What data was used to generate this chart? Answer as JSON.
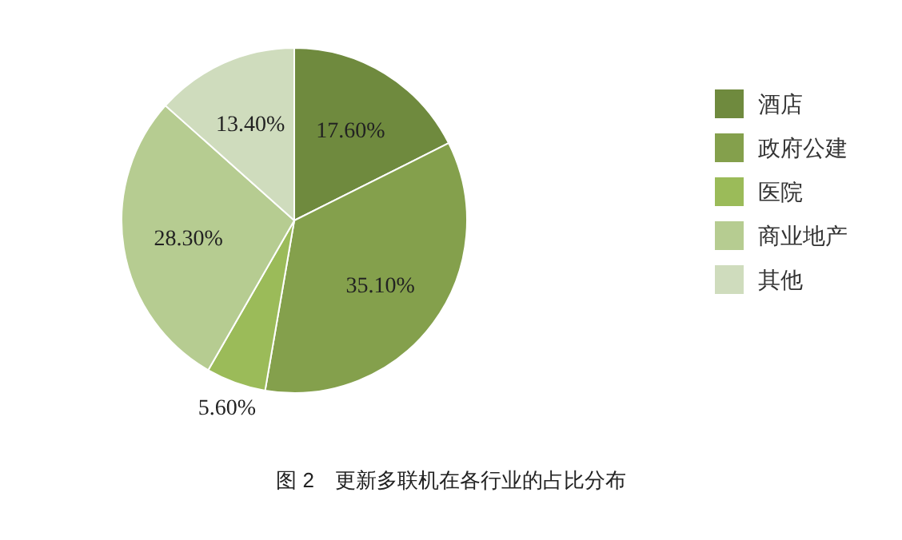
{
  "chart_data": {
    "type": "pie",
    "title": "图 2　更新多联机在各行业的占比分布",
    "categories": [
      "酒店",
      "政府公建",
      "医院",
      "商业地产",
      "其他"
    ],
    "values": [
      17.6,
      35.1,
      5.6,
      28.3,
      13.4
    ],
    "value_labels": [
      "17.60%",
      "35.10%",
      "5.60%",
      "28.30%",
      "13.40%"
    ],
    "colors": [
      "#6f8a3e",
      "#84a04c",
      "#9bbb59",
      "#b6cc91",
      "#cfdcbd"
    ],
    "legend": "right"
  }
}
